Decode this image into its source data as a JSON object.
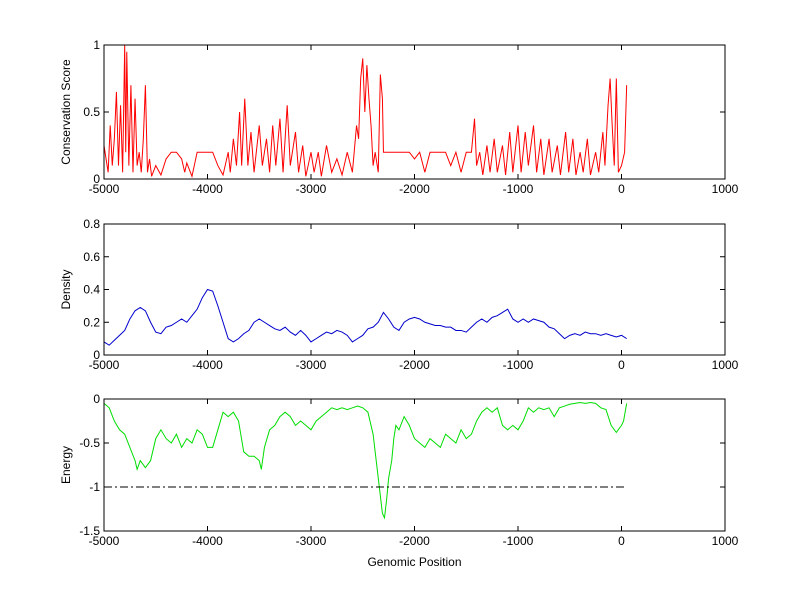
{
  "chart_data": [
    {
      "type": "line",
      "ylabel": "Conservation Score",
      "color": "#ff0000",
      "xlim": [
        -5000,
        1000
      ],
      "xticks": [
        -5000,
        -4000,
        -3000,
        -2000,
        -1000,
        0,
        1000
      ],
      "ylim": [
        0,
        1
      ],
      "yticks": [
        0,
        0.5,
        1
      ],
      "x": [
        -5000,
        -4980,
        -4960,
        -4940,
        -4920,
        -4900,
        -4880,
        -4860,
        -4840,
        -4820,
        -4800,
        -4790,
        -4780,
        -4760,
        -4740,
        -4720,
        -4700,
        -4680,
        -4660,
        -4640,
        -4620,
        -4600,
        -4580,
        -4560,
        -4540,
        -4500,
        -4450,
        -4400,
        -4350,
        -4300,
        -4250,
        -4220,
        -4200,
        -4150,
        -4100,
        -4050,
        -4000,
        -3950,
        -3900,
        -3850,
        -3800,
        -3780,
        -3750,
        -3720,
        -3690,
        -3670,
        -3640,
        -3610,
        -3580,
        -3550,
        -3500,
        -3470,
        -3430,
        -3400,
        -3370,
        -3340,
        -3300,
        -3270,
        -3230,
        -3200,
        -3150,
        -3120,
        -3080,
        -3050,
        -3000,
        -2970,
        -2930,
        -2900,
        -2850,
        -2800,
        -2750,
        -2700,
        -2650,
        -2600,
        -2560,
        -2540,
        -2520,
        -2500,
        -2480,
        -2460,
        -2440,
        -2420,
        -2400,
        -2380,
        -2350,
        -2330,
        -2310,
        -2300,
        -2250,
        -2200,
        -2100,
        -2050,
        -2000,
        -1950,
        -1900,
        -1850,
        -1800,
        -1700,
        -1650,
        -1600,
        -1550,
        -1500,
        -1450,
        -1420,
        -1400,
        -1370,
        -1340,
        -1300,
        -1270,
        -1230,
        -1200,
        -1150,
        -1120,
        -1080,
        -1050,
        -1000,
        -970,
        -930,
        -900,
        -850,
        -820,
        -780,
        -750,
        -700,
        -670,
        -620,
        -590,
        -540,
        -510,
        -470,
        -440,
        -400,
        -370,
        -330,
        -300,
        -250,
        -220,
        -180,
        -160,
        -130,
        -110,
        -90,
        -70,
        -50,
        -30,
        0,
        30,
        50
      ],
      "values": [
        0.25,
        0.15,
        0.05,
        0.4,
        0.1,
        0.3,
        0.65,
        0.1,
        0.55,
        0.05,
        1.0,
        0.2,
        0.95,
        0.1,
        0.7,
        0.05,
        0.6,
        0.1,
        0.2,
        0.05,
        0.3,
        0.7,
        0.05,
        0.15,
        0.02,
        0.1,
        0.03,
        0.15,
        0.2,
        0.2,
        0.15,
        0.05,
        0.12,
        0.02,
        0.2,
        0.2,
        0.2,
        0.2,
        0.1,
        0.03,
        0.2,
        0.05,
        0.3,
        0.1,
        0.5,
        0.1,
        0.6,
        0.1,
        0.35,
        0.05,
        0.4,
        0.1,
        0.3,
        0.05,
        0.4,
        0.1,
        0.45,
        0.05,
        0.55,
        0.1,
        0.35,
        0.05,
        0.25,
        0.02,
        0.2,
        0.05,
        0.2,
        0.02,
        0.25,
        0.05,
        0.15,
        0.03,
        0.2,
        0.05,
        0.4,
        0.3,
        0.75,
        0.9,
        0.5,
        0.85,
        0.6,
        0.4,
        0.1,
        0.2,
        0.05,
        0.78,
        0.6,
        0.2,
        0.2,
        0.2,
        0.2,
        0.2,
        0.15,
        0.2,
        0.05,
        0.2,
        0.2,
        0.2,
        0.1,
        0.2,
        0.05,
        0.2,
        0.2,
        0.45,
        0.1,
        0.2,
        0.03,
        0.25,
        0.05,
        0.3,
        0.05,
        0.25,
        0.03,
        0.35,
        0.05,
        0.4,
        0.05,
        0.35,
        0.1,
        0.4,
        0.05,
        0.3,
        0.03,
        0.3,
        0.05,
        0.25,
        0.03,
        0.35,
        0.05,
        0.3,
        0.03,
        0.2,
        0.05,
        0.3,
        0.03,
        0.2,
        0.05,
        0.35,
        0.1,
        0.55,
        0.75,
        0.4,
        0.1,
        0.75,
        0.05,
        0.1,
        0.2,
        0.7
      ]
    },
    {
      "type": "line",
      "ylabel": "Density",
      "color": "#0000cc",
      "xlim": [
        -5000,
        1000
      ],
      "xticks": [
        -5000,
        -4000,
        -3000,
        -2000,
        -1000,
        0,
        1000
      ],
      "ylim": [
        0,
        0.8
      ],
      "yticks": [
        0,
        0.2,
        0.4,
        0.6,
        0.8
      ],
      "x": [
        -5000,
        -4950,
        -4900,
        -4850,
        -4800,
        -4750,
        -4700,
        -4650,
        -4600,
        -4550,
        -4500,
        -4450,
        -4400,
        -4350,
        -4300,
        -4250,
        -4200,
        -4150,
        -4100,
        -4050,
        -4000,
        -3950,
        -3900,
        -3850,
        -3800,
        -3750,
        -3700,
        -3650,
        -3600,
        -3550,
        -3500,
        -3450,
        -3400,
        -3350,
        -3300,
        -3250,
        -3200,
        -3150,
        -3100,
        -3050,
        -3000,
        -2950,
        -2900,
        -2850,
        -2800,
        -2750,
        -2700,
        -2650,
        -2600,
        -2550,
        -2500,
        -2450,
        -2400,
        -2350,
        -2300,
        -2250,
        -2200,
        -2150,
        -2100,
        -2050,
        -2000,
        -1950,
        -1900,
        -1850,
        -1800,
        -1750,
        -1700,
        -1650,
        -1600,
        -1550,
        -1500,
        -1450,
        -1400,
        -1350,
        -1300,
        -1250,
        -1200,
        -1150,
        -1100,
        -1050,
        -1000,
        -950,
        -900,
        -850,
        -800,
        -750,
        -700,
        -650,
        -600,
        -550,
        -500,
        -450,
        -400,
        -350,
        -300,
        -250,
        -200,
        -150,
        -100,
        -50,
        0,
        50
      ],
      "values": [
        0.08,
        0.06,
        0.09,
        0.12,
        0.15,
        0.22,
        0.27,
        0.29,
        0.27,
        0.2,
        0.14,
        0.13,
        0.17,
        0.18,
        0.2,
        0.22,
        0.2,
        0.24,
        0.28,
        0.35,
        0.4,
        0.39,
        0.3,
        0.2,
        0.1,
        0.08,
        0.1,
        0.13,
        0.15,
        0.2,
        0.22,
        0.2,
        0.18,
        0.16,
        0.15,
        0.17,
        0.14,
        0.12,
        0.15,
        0.12,
        0.08,
        0.1,
        0.12,
        0.14,
        0.13,
        0.15,
        0.14,
        0.12,
        0.08,
        0.1,
        0.12,
        0.16,
        0.17,
        0.2,
        0.26,
        0.22,
        0.17,
        0.15,
        0.2,
        0.22,
        0.23,
        0.22,
        0.2,
        0.19,
        0.18,
        0.18,
        0.17,
        0.17,
        0.15,
        0.15,
        0.14,
        0.17,
        0.2,
        0.22,
        0.2,
        0.23,
        0.24,
        0.26,
        0.28,
        0.22,
        0.2,
        0.22,
        0.2,
        0.22,
        0.21,
        0.2,
        0.17,
        0.16,
        0.13,
        0.1,
        0.12,
        0.13,
        0.12,
        0.14,
        0.13,
        0.13,
        0.12,
        0.13,
        0.12,
        0.11,
        0.12,
        0.1
      ]
    },
    {
      "type": "line",
      "ylabel": "Energy",
      "xlabel": "Genomic Position",
      "color": "#00dd00",
      "xlim": [
        -5000,
        1000
      ],
      "xticks": [
        -5000,
        -4000,
        -3000,
        -2000,
        -1000,
        0,
        1000
      ],
      "ylim": [
        -1.5,
        0
      ],
      "yticks": [
        -1.5,
        -1,
        -0.5,
        0
      ],
      "x": [
        -5000,
        -4950,
        -4900,
        -4850,
        -4800,
        -4750,
        -4700,
        -4680,
        -4650,
        -4600,
        -4550,
        -4500,
        -4450,
        -4400,
        -4350,
        -4300,
        -4250,
        -4200,
        -4150,
        -4100,
        -4050,
        -4000,
        -3950,
        -3900,
        -3850,
        -3800,
        -3750,
        -3700,
        -3650,
        -3600,
        -3550,
        -3500,
        -3480,
        -3450,
        -3400,
        -3350,
        -3300,
        -3250,
        -3200,
        -3150,
        -3100,
        -3050,
        -3000,
        -2950,
        -2900,
        -2850,
        -2800,
        -2750,
        -2700,
        -2650,
        -2600,
        -2550,
        -2500,
        -2450,
        -2400,
        -2380,
        -2350,
        -2330,
        -2310,
        -2290,
        -2270,
        -2250,
        -2220,
        -2200,
        -2180,
        -2150,
        -2100,
        -2050,
        -2000,
        -1950,
        -1900,
        -1850,
        -1800,
        -1750,
        -1700,
        -1650,
        -1600,
        -1550,
        -1500,
        -1450,
        -1400,
        -1350,
        -1300,
        -1250,
        -1200,
        -1150,
        -1100,
        -1050,
        -1000,
        -950,
        -900,
        -850,
        -800,
        -750,
        -700,
        -650,
        -600,
        -550,
        -500,
        -450,
        -400,
        -350,
        -300,
        -250,
        -200,
        -150,
        -100,
        -50,
        0,
        20,
        50
      ],
      "values": [
        -0.05,
        -0.1,
        -0.25,
        -0.35,
        -0.4,
        -0.55,
        -0.7,
        -0.8,
        -0.7,
        -0.78,
        -0.7,
        -0.45,
        -0.35,
        -0.45,
        -0.5,
        -0.4,
        -0.55,
        -0.45,
        -0.5,
        -0.35,
        -0.4,
        -0.55,
        -0.55,
        -0.35,
        -0.15,
        -0.2,
        -0.15,
        -0.25,
        -0.6,
        -0.65,
        -0.65,
        -0.7,
        -0.8,
        -0.55,
        -0.35,
        -0.3,
        -0.2,
        -0.15,
        -0.2,
        -0.3,
        -0.25,
        -0.3,
        -0.35,
        -0.25,
        -0.2,
        -0.15,
        -0.1,
        -0.12,
        -0.1,
        -0.12,
        -0.1,
        -0.08,
        -0.1,
        -0.15,
        -0.4,
        -0.6,
        -0.9,
        -1.1,
        -1.3,
        -1.35,
        -1.15,
        -0.9,
        -0.7,
        -0.45,
        -0.3,
        -0.35,
        -0.2,
        -0.3,
        -0.45,
        -0.5,
        -0.55,
        -0.45,
        -0.5,
        -0.55,
        -0.4,
        -0.45,
        -0.5,
        -0.35,
        -0.45,
        -0.4,
        -0.25,
        -0.15,
        -0.1,
        -0.15,
        -0.1,
        -0.3,
        -0.35,
        -0.3,
        -0.35,
        -0.25,
        -0.1,
        -0.15,
        -0.1,
        -0.12,
        -0.1,
        -0.2,
        -0.1,
        -0.08,
        -0.06,
        -0.05,
        -0.04,
        -0.05,
        -0.04,
        -0.05,
        -0.1,
        -0.12,
        -0.3,
        -0.38,
        -0.3,
        -0.25,
        -0.05
      ],
      "threshold": {
        "x": [
          -5000,
          50
        ],
        "values": [
          -1,
          -1
        ],
        "color": "#000000"
      }
    }
  ]
}
